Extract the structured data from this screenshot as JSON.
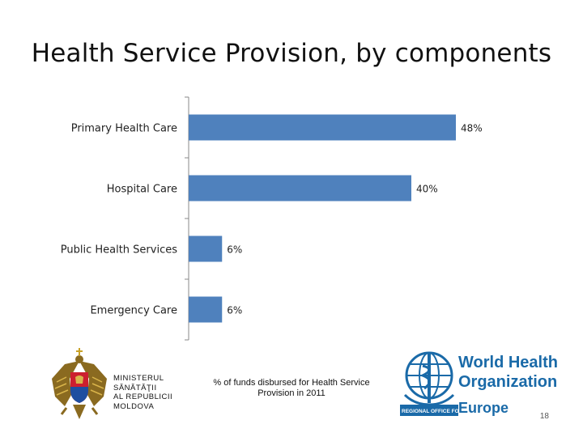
{
  "slide": {
    "title": "Health Service Provision, by components",
    "caption": "% of funds disbursed  for Health Service Provision in 2011",
    "page_number": "18"
  },
  "ministry": {
    "text": "MINISTERUL\nSĂNĂTĂŢII\nAL REPUBLICII\nMOLDOVA"
  },
  "who_logo": {
    "line1": "World Health",
    "line2": "Organization",
    "regional": "REGIONAL OFFICE FOR",
    "region": "Europe",
    "color": "#1a6aa8"
  },
  "chart_data": {
    "type": "bar",
    "orientation": "horizontal",
    "categories": [
      "Primary Health Care",
      "Hospital Care",
      "Public Health Services",
      "Emergency Care"
    ],
    "values": [
      48,
      40,
      6,
      6
    ],
    "data_labels": [
      "48%",
      "40%",
      "6%",
      "6%"
    ],
    "xlim": [
      0,
      50
    ],
    "bar_color": "#4f81bd",
    "legend": "none",
    "grid": false
  }
}
